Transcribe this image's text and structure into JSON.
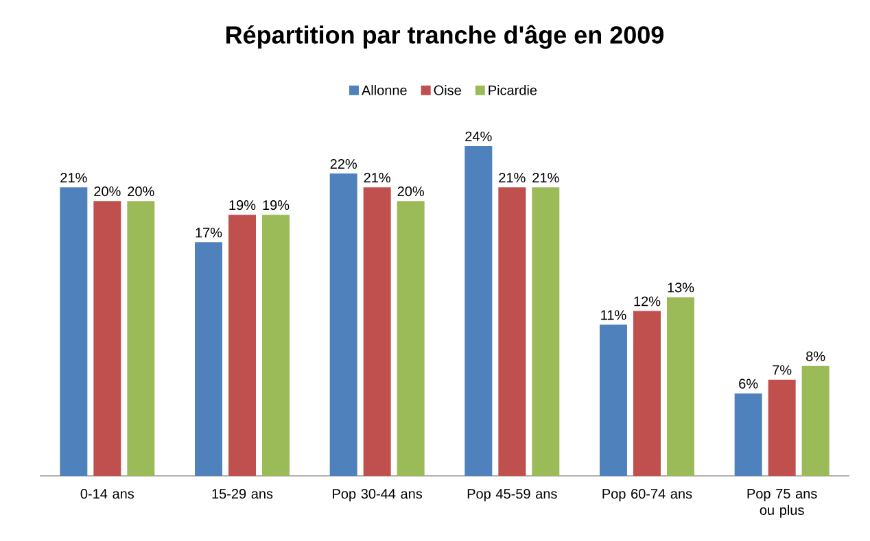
{
  "chart_data": {
    "type": "bar",
    "title": "Répartition par tranche d'âge en 2009",
    "categories": [
      "0-14 ans",
      "15-29 ans",
      "Pop 30-44 ans",
      "Pop 45-59 ans",
      "Pop 60-74 ans",
      "Pop 75 ans ou plus"
    ],
    "series": [
      {
        "name": "Allonne",
        "color": "#4f81bd",
        "values": [
          21,
          17,
          22,
          24,
          11,
          6
        ],
        "value_labels": [
          "21%",
          "17%",
          "22%",
          "24%",
          "11%",
          "6%"
        ]
      },
      {
        "name": "Oise",
        "color": "#c0504d",
        "values": [
          20,
          19,
          21,
          21,
          12,
          7
        ],
        "value_labels": [
          "20%",
          "19%",
          "21%",
          "21%",
          "12%",
          "7%"
        ]
      },
      {
        "name": "Picardie",
        "color": "#9bbb59",
        "values": [
          20,
          19,
          20,
          21,
          13,
          8
        ],
        "value_labels": [
          "20%",
          "19%",
          "20%",
          "21%",
          "13%",
          "8%"
        ]
      }
    ],
    "legend": "top"
  }
}
